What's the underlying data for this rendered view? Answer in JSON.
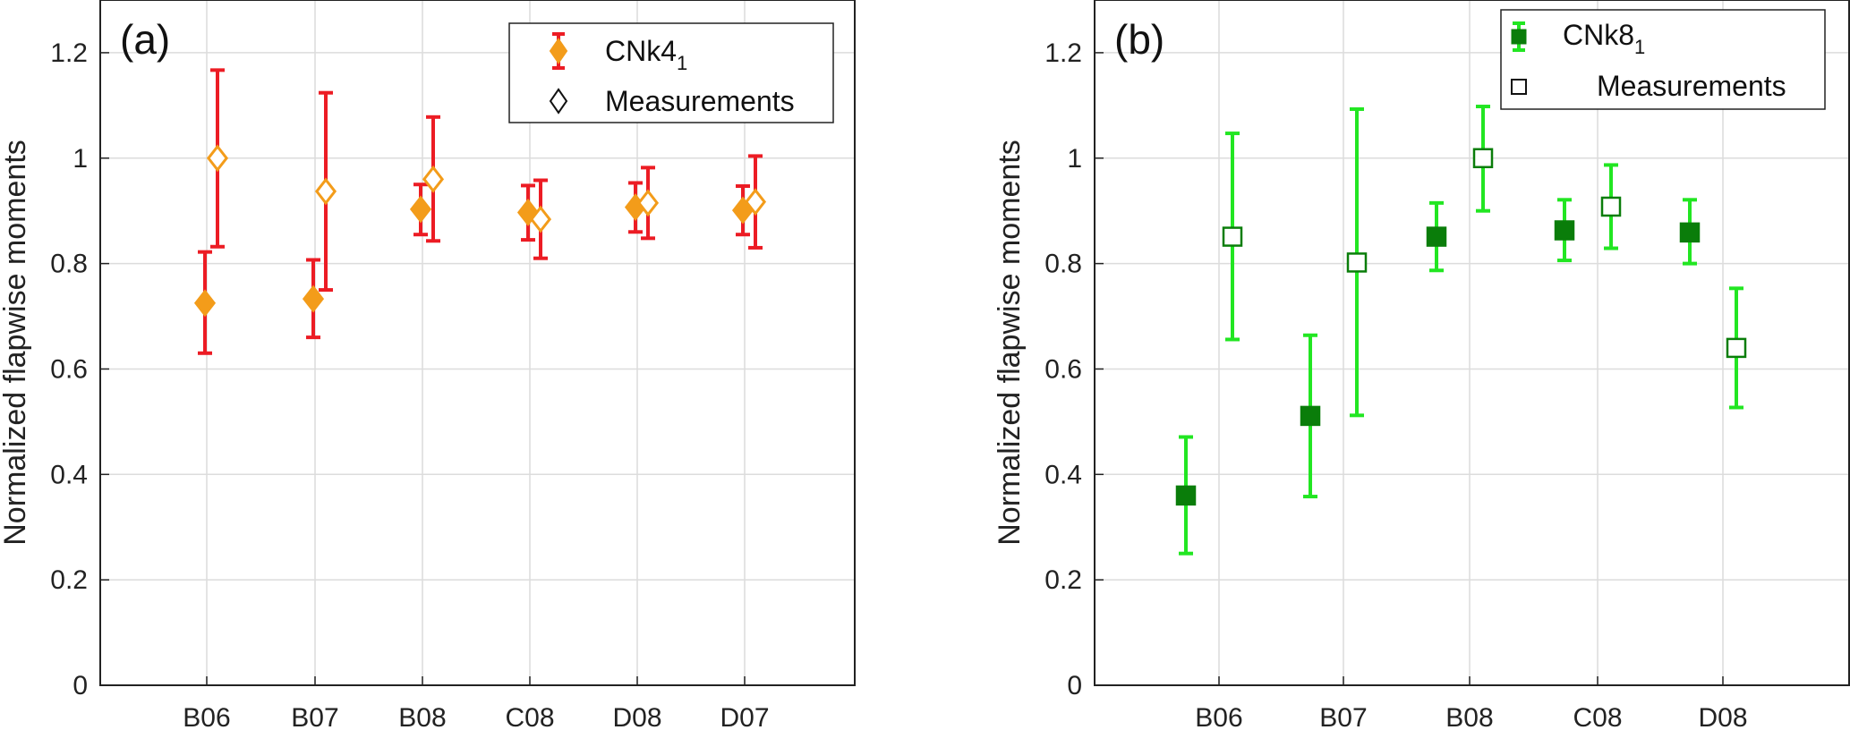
{
  "chart_data": [
    {
      "panel_label": "(a)",
      "type": "errorbar",
      "ylabel": "Normalized flapwise moments",
      "xlabel": "",
      "ylim": [
        0,
        1.3
      ],
      "yticks": [
        0,
        0.2,
        0.4,
        0.6,
        0.8,
        1,
        1.2
      ],
      "ytick_labels": [
        "0",
        "0.2",
        "0.4",
        "0.6",
        "0.8",
        "1",
        "1.2"
      ],
      "grid": true,
      "legend_position": "top-right",
      "categories": [
        "B06",
        "B07",
        "B08",
        "C08",
        "D08",
        "D07"
      ],
      "series": [
        {
          "name": "CNk4",
          "name_subscript": "1",
          "marker": "filled-diamond",
          "marker_color": "#f39c1a",
          "errorbar_color": "#ec1c24",
          "values": [
            0.725,
            0.733,
            0.903,
            0.897,
            0.907,
            0.901
          ],
          "lower": [
            0.63,
            0.66,
            0.855,
            0.845,
            0.86,
            0.855
          ],
          "upper": [
            0.822,
            0.807,
            0.95,
            0.948,
            0.953,
            0.947
          ]
        },
        {
          "name": "Measurements",
          "name_subscript": "",
          "marker": "open-diamond",
          "marker_color": "#f39c1a",
          "errorbar_color": "#ec1c24",
          "values": [
            1.0,
            0.937,
            0.96,
            0.884,
            0.915,
            0.917
          ],
          "lower": [
            0.832,
            0.75,
            0.843,
            0.81,
            0.848,
            0.83
          ],
          "upper": [
            1.167,
            1.124,
            1.078,
            0.958,
            0.982,
            1.004
          ]
        }
      ]
    },
    {
      "panel_label": "(b)",
      "type": "errorbar",
      "ylabel": "Normalized flapwise moments",
      "xlabel": "",
      "ylim": [
        0,
        1.3
      ],
      "yticks": [
        0,
        0.2,
        0.4,
        0.6,
        0.8,
        1,
        1.2
      ],
      "ytick_labels": [
        "0",
        "0.2",
        "0.4",
        "0.6",
        "0.8",
        "1",
        "1.2"
      ],
      "grid": true,
      "legend_position": "top-right",
      "categories": [
        "B06",
        "B07",
        "B08",
        "C08",
        "D08"
      ],
      "series": [
        {
          "name": "CNk8",
          "name_subscript": "1",
          "marker": "filled-square",
          "marker_color": "#0a7d0a",
          "errorbar_color": "#22e622",
          "values": [
            0.36,
            0.511,
            0.851,
            0.863,
            0.859
          ],
          "lower": [
            0.25,
            0.358,
            0.787,
            0.806,
            0.8
          ],
          "upper": [
            0.471,
            0.664,
            0.915,
            0.921,
            0.921
          ]
        },
        {
          "name": "Measurements",
          "name_subscript": "",
          "marker": "open-square",
          "marker_color": "#0a7d0a",
          "errorbar_color": "#22e622",
          "values": [
            0.851,
            0.802,
            1.0,
            0.908,
            0.64
          ],
          "lower": [
            0.656,
            0.512,
            0.9,
            0.829,
            0.527
          ],
          "upper": [
            1.047,
            1.093,
            1.098,
            0.987,
            0.753
          ]
        }
      ]
    }
  ]
}
